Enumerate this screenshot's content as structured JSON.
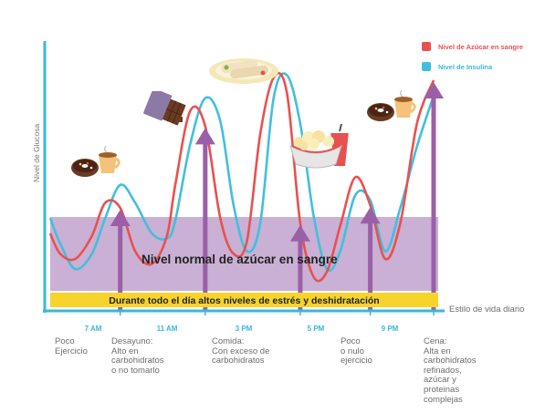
{
  "chart_data": {
    "type": "line",
    "ylabel": "Nivel de Glucosa",
    "xlabel": "Estilo de vida diario",
    "band_label": "Nivel normal de azúcar en sangre",
    "stress_label": "Durante todo el día altos niveles de estrés y deshidratación",
    "legend": [
      {
        "name": "Nivel de Azúcar en sangre",
        "color": "#e8514f"
      },
      {
        "name": "Nivel de Insulina",
        "color": "#42bfdc"
      }
    ],
    "time_ticks": [
      "7 AM",
      "11 AM",
      "3 PM",
      "5 PM",
      "9 PM"
    ],
    "meal_notes": [
      "Poco\nEjercicio",
      "Desayuno:\nAlto en\ncarbohidratos\no no tomarlo",
      "Comida:\nCon exceso de\ncarbohidratos",
      "Poco\no nulo\nejercicio",
      "Cena:\nAlta en\ncarbohidratos\nrefinados,\nazúcar y\nproteinas\ncomplejas"
    ],
    "y_range": [
      0,
      10
    ],
    "band_range": [
      1.5,
      4.2
    ],
    "series": [
      {
        "name": "Nivel de Azúcar en sangre",
        "x": [
          0,
          0.6,
          1.5,
          2.5,
          3.3,
          4.2,
          5.1,
          6.1,
          7,
          7.5,
          8.4,
          9.3,
          10.2,
          11,
          11.8,
          12.6,
          13.4,
          14.2,
          15,
          15.8,
          16.6,
          17.4,
          18.3,
          19.2,
          20.1,
          21,
          22,
          23
        ],
        "values": [
          3.0,
          2.2,
          2.0,
          2.9,
          4.2,
          4.0,
          2.3,
          1.8,
          2.9,
          4.9,
          7.8,
          7.2,
          3.6,
          2.2,
          2.7,
          6.9,
          9.1,
          8.5,
          3.4,
          1.3,
          1.5,
          3.3,
          5.2,
          4.1,
          2.0,
          3.4,
          7.3,
          9.0
        ]
      },
      {
        "name": "Nivel de Insulina",
        "x": [
          0,
          0.6,
          1.5,
          2.5,
          3.3,
          4.2,
          5.1,
          6.1,
          7,
          7.5,
          8.4,
          9.3,
          10.2,
          11,
          11.8,
          12.6,
          13.4,
          14.2,
          15,
          15.8,
          16.6,
          17.4,
          18.3,
          19.2,
          20.1,
          21,
          22,
          23
        ],
        "values": [
          3.6,
          2.6,
          1.6,
          2.2,
          3.6,
          4.9,
          4.2,
          3.0,
          2.8,
          3.5,
          6.5,
          8.3,
          7.4,
          4.1,
          2.3,
          3.4,
          8.3,
          9.2,
          7.3,
          3.7,
          1.6,
          2.3,
          4.5,
          4.3,
          2.3,
          4.0,
          6.4,
          8.4
        ]
      }
    ],
    "arrows_x": [
      4.2,
      9.3,
      15.0,
      19.2,
      23.0
    ],
    "arrow_color": "#9b5fa8",
    "band_color": "#c9b0d4",
    "stress_color": "#f7d42c",
    "axis_color": "#3ab8d8"
  },
  "icons": [
    "donut-and-coffee-icon",
    "chocolate-bar-icon",
    "burrito-plate-icon",
    "popcorn-and-soda-icon",
    "donut-and-coffee-icon"
  ]
}
